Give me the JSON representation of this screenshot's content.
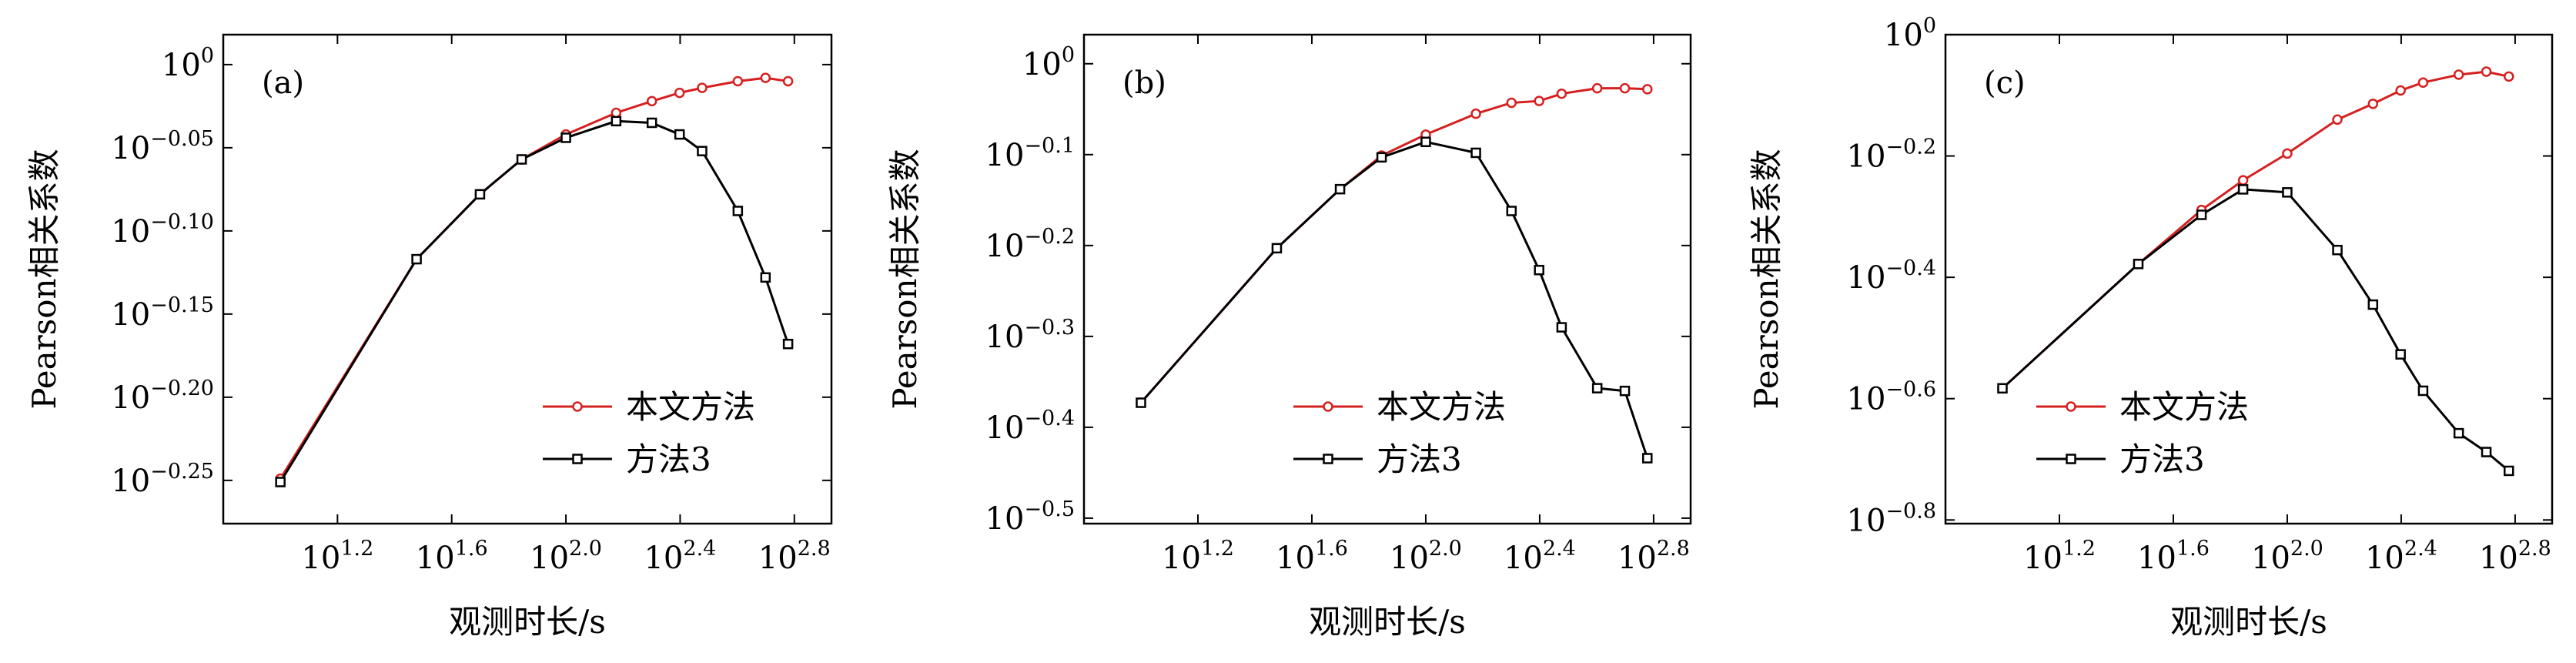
{
  "figure": {
    "legend_series": [
      "本文方法",
      "方法3"
    ],
    "colors": {
      "method_ours": "#d62020",
      "method3": "#000000",
      "axis": "#000000"
    }
  },
  "chart_data": [
    {
      "type": "line",
      "panel_label": "(a)",
      "xlabel": "观测时长/s",
      "ylabel": "Pearson相关系数",
      "x_scale": "log10",
      "y_scale": "log10",
      "xlim_log10": [
        0.8,
        2.93
      ],
      "ylim_log10": [
        -0.276,
        0.018
      ],
      "x_ticks": [
        {
          "base": "10",
          "exp": "1.2",
          "v": 1.2
        },
        {
          "base": "10",
          "exp": "1.6",
          "v": 1.6
        },
        {
          "base": "10",
          "exp": "2.0",
          "v": 2.0
        },
        {
          "base": "10",
          "exp": "2.4",
          "v": 2.4
        },
        {
          "base": "10",
          "exp": "2.8",
          "v": 2.8
        }
      ],
      "y_ticks": [
        {
          "base": "10",
          "exp": "0",
          "v": 0
        },
        {
          "base": "10",
          "exp": "−0.05",
          "v": -0.05
        },
        {
          "base": "10",
          "exp": "−0.10",
          "v": -0.1
        },
        {
          "base": "10",
          "exp": "−0.15",
          "v": -0.15
        },
        {
          "base": "10",
          "exp": "−0.20",
          "v": -0.2
        },
        {
          "base": "10",
          "exp": "−0.25",
          "v": -0.25
        }
      ],
      "legend_position": "lower-right",
      "series": [
        {
          "name": "本文方法",
          "color": "#d62020",
          "marker": "circle",
          "x_log10": [
            1.0,
            1.477,
            1.699,
            1.845,
            2.0,
            2.176,
            2.301,
            2.398,
            2.477,
            2.602,
            2.699,
            2.778
          ],
          "y_log10": [
            -0.249,
            -0.117,
            -0.078,
            -0.057,
            -0.042,
            -0.029,
            -0.022,
            -0.017,
            -0.014,
            -0.01,
            -0.008,
            -0.01
          ]
        },
        {
          "name": "方法3",
          "color": "#000000",
          "marker": "square",
          "x_log10": [
            1.0,
            1.477,
            1.699,
            1.845,
            2.0,
            2.176,
            2.301,
            2.398,
            2.477,
            2.602,
            2.699,
            2.778
          ],
          "y_log10": [
            -0.251,
            -0.117,
            -0.078,
            -0.057,
            -0.044,
            -0.034,
            -0.035,
            -0.042,
            -0.052,
            -0.088,
            -0.128,
            -0.168
          ]
        }
      ]
    },
    {
      "type": "line",
      "panel_label": "(b)",
      "xlabel": "观测时长/s",
      "ylabel": "Pearson相关系数",
      "x_scale": "log10",
      "y_scale": "log10",
      "xlim_log10": [
        0.8,
        2.93
      ],
      "ylim_log10": [
        -0.506,
        0.032
      ],
      "x_ticks": [
        {
          "base": "10",
          "exp": "1.2",
          "v": 1.2
        },
        {
          "base": "10",
          "exp": "1.6",
          "v": 1.6
        },
        {
          "base": "10",
          "exp": "2.0",
          "v": 2.0
        },
        {
          "base": "10",
          "exp": "2.4",
          "v": 2.4
        },
        {
          "base": "10",
          "exp": "2.8",
          "v": 2.8
        }
      ],
      "y_ticks": [
        {
          "base": "10",
          "exp": "0",
          "v": 0
        },
        {
          "base": "10",
          "exp": "−0.1",
          "v": -0.1
        },
        {
          "base": "10",
          "exp": "−0.2",
          "v": -0.2
        },
        {
          "base": "10",
          "exp": "−0.3",
          "v": -0.3
        },
        {
          "base": "10",
          "exp": "−0.4",
          "v": -0.4
        },
        {
          "base": "10",
          "exp": "−0.5",
          "v": -0.5
        }
      ],
      "legend_position": "lower-right",
      "series": [
        {
          "name": "本文方法",
          "color": "#d62020",
          "marker": "circle",
          "x_log10": [
            1.0,
            1.477,
            1.699,
            1.845,
            2.0,
            2.176,
            2.301,
            2.398,
            2.477,
            2.602,
            2.699,
            2.778
          ],
          "y_log10": [
            -0.373,
            -0.203,
            -0.138,
            -0.101,
            -0.078,
            -0.055,
            -0.043,
            -0.041,
            -0.033,
            -0.027,
            -0.027,
            -0.028
          ]
        },
        {
          "name": "方法3",
          "color": "#000000",
          "marker": "square",
          "x_log10": [
            1.0,
            1.477,
            1.699,
            1.845,
            2.0,
            2.176,
            2.301,
            2.398,
            2.477,
            2.602,
            2.699,
            2.778
          ],
          "y_log10": [
            -0.373,
            -0.203,
            -0.138,
            -0.103,
            -0.086,
            -0.098,
            -0.162,
            -0.227,
            -0.29,
            -0.357,
            -0.36,
            -0.434
          ]
        }
      ]
    },
    {
      "type": "line",
      "panel_label": "(c)",
      "xlabel": "观测时长/s",
      "ylabel": "Pearson相关系数",
      "x_scale": "log10",
      "y_scale": "log10",
      "xlim_log10": [
        0.8,
        2.93
      ],
      "ylim_log10": [
        -0.806,
        0.0
      ],
      "x_ticks": [
        {
          "base": "10",
          "exp": "1.2",
          "v": 1.2
        },
        {
          "base": "10",
          "exp": "1.6",
          "v": 1.6
        },
        {
          "base": "10",
          "exp": "2.0",
          "v": 2.0
        },
        {
          "base": "10",
          "exp": "2.4",
          "v": 2.4
        },
        {
          "base": "10",
          "exp": "2.8",
          "v": 2.8
        }
      ],
      "y_ticks": [
        {
          "base": "10",
          "exp": "0",
          "v": 0
        },
        {
          "base": "10",
          "exp": "−0.2",
          "v": -0.2
        },
        {
          "base": "10",
          "exp": "−0.4",
          "v": -0.4
        },
        {
          "base": "10",
          "exp": "−0.6",
          "v": -0.6
        },
        {
          "base": "10",
          "exp": "−0.8",
          "v": -0.8
        }
      ],
      "legend_position": "lower-right",
      "series": [
        {
          "name": "本文方法",
          "color": "#d62020",
          "marker": "circle",
          "x_log10": [
            1.0,
            1.477,
            1.699,
            1.845,
            2.0,
            2.176,
            2.301,
            2.398,
            2.477,
            2.602,
            2.699,
            2.778
          ],
          "y_log10": [
            -0.583,
            -0.378,
            -0.289,
            -0.24,
            -0.196,
            -0.14,
            -0.114,
            -0.092,
            -0.079,
            -0.066,
            -0.061,
            -0.069
          ]
        },
        {
          "name": "方法3",
          "color": "#000000",
          "marker": "square",
          "x_log10": [
            1.0,
            1.477,
            1.699,
            1.845,
            2.0,
            2.176,
            2.301,
            2.398,
            2.477,
            2.602,
            2.699,
            2.778
          ],
          "y_log10": [
            -0.583,
            -0.378,
            -0.297,
            -0.255,
            -0.26,
            -0.355,
            -0.445,
            -0.527,
            -0.587,
            -0.657,
            -0.688,
            -0.719
          ]
        }
      ]
    }
  ]
}
